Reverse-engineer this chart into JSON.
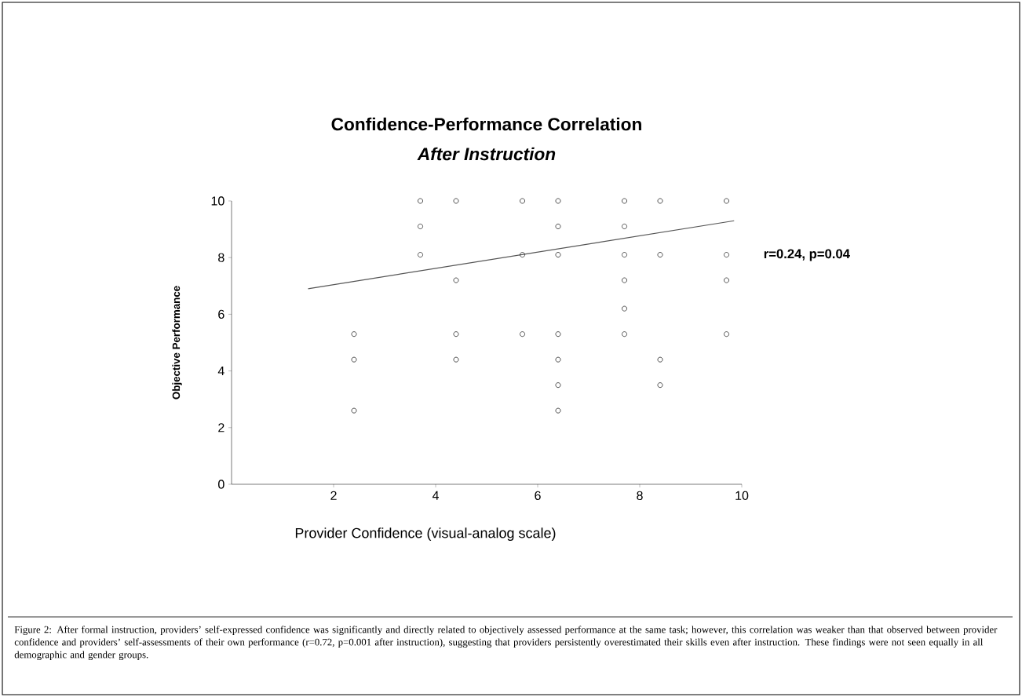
{
  "chart_data": {
    "type": "scatter",
    "title": "Confidence-Performance Correlation",
    "subtitle": "After Instruction",
    "xlabel": "Provider Confidence (visual-analog scale)",
    "ylabel": "Objective Performance",
    "xlim": [
      0,
      10
    ],
    "ylim": [
      0,
      10
    ],
    "xticks": [
      2,
      4,
      6,
      8,
      10
    ],
    "yticks": [
      0,
      2,
      4,
      6,
      8,
      10
    ],
    "grid": false,
    "series": [
      {
        "marker": "circle",
        "color": "#000000",
        "x": [
          2.4,
          2.4,
          2.4,
          3.7,
          3.7,
          3.7,
          4.4,
          4.4,
          4.4,
          4.4,
          5.7,
          5.7,
          5.7,
          6.4,
          6.4,
          6.4,
          6.4,
          6.4,
          6.4,
          6.4,
          7.7,
          7.7,
          7.7,
          7.7,
          7.7,
          7.7,
          8.4,
          8.4,
          8.4,
          8.4,
          9.7,
          9.7,
          9.7,
          9.7
        ],
        "values": [
          5.3,
          4.4,
          2.6,
          10,
          9.1,
          8.1,
          10,
          7.2,
          5.3,
          4.4,
          10,
          8.1,
          5.3,
          10,
          9.1,
          8.1,
          5.3,
          4.4,
          3.5,
          2.6,
          10,
          9.1,
          8.1,
          7.2,
          6.2,
          5.3,
          10,
          8.1,
          4.4,
          3.5,
          10,
          8.1,
          7.2,
          5.3
        ]
      },
      {
        "type": "line",
        "color": "#555555",
        "x": [
          1.5,
          9.85
        ],
        "values": [
          6.9,
          9.3
        ]
      }
    ],
    "annotations": [
      "r=0.24, p=0.04",
      "Figure 2: After formal instruction, providers’ self-expressed confidence was significantly and directly related to objectively assessed performance at the same task; however, this correlation was weaker than that observed between provider confidence and providers’ self-assessments of their own performance (r=0.72, p=0.001 after instruction), suggesting that providers persistently overestimated their skills even after instruction. These findings were not seen equally in all demographic and gender groups."
    ]
  }
}
